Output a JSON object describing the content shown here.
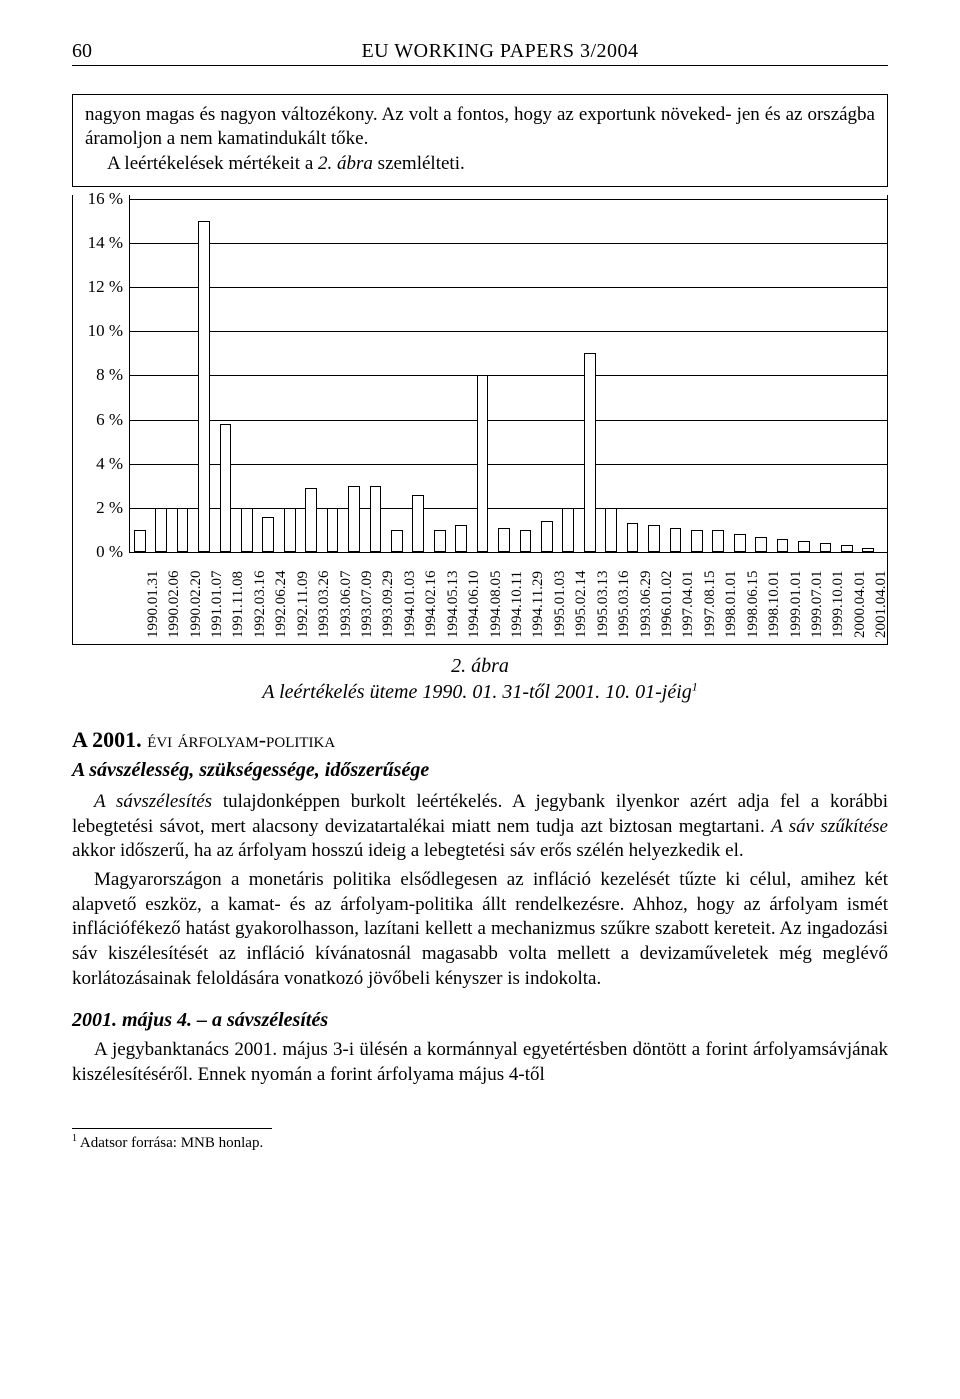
{
  "page_number": "60",
  "header_title": "EU WORKING PAPERS 3/2004",
  "intro": {
    "line1": "nagyon magas és nagyon változékony. Az volt a fontos, hogy az exportunk növeked-",
    "line2": "jen és az országba áramoljon a nem kamatindukált tőke.",
    "line3_prefix": "A leértékelések mértékeit a ",
    "line3_em": "2. ábra",
    "line3_suffix": " szemlélteti."
  },
  "chart": {
    "yticks": [
      0,
      2,
      4,
      6,
      8,
      10,
      12,
      14,
      16
    ],
    "ytick_labels": [
      "0 %",
      "2 %",
      "4 %",
      "6 %",
      "8 %",
      "10 %",
      "12 %",
      "14 %",
      "16 %"
    ],
    "ymax": 16,
    "bar_fill": "#ffffff",
    "bar_border": "#000000",
    "background": "#ffffff",
    "grid_color": "#000000",
    "bar_width_ratio": 0.55,
    "series": [
      {
        "date": "1990.01.31",
        "value": 1.0
      },
      {
        "date": "1990.02.06",
        "value": 2.0
      },
      {
        "date": "1990.02.20",
        "value": 2.0
      },
      {
        "date": "1991.01.07",
        "value": 15.0
      },
      {
        "date": "1991.11.08",
        "value": 5.8
      },
      {
        "date": "1992.03.16",
        "value": 2.0
      },
      {
        "date": "1992.06.24",
        "value": 1.6
      },
      {
        "date": "1992.11.09",
        "value": 2.0
      },
      {
        "date": "1993.03.26",
        "value": 2.9
      },
      {
        "date": "1993.06.07",
        "value": 2.0
      },
      {
        "date": "1993.07.09",
        "value": 3.0
      },
      {
        "date": "1993.09.29",
        "value": 3.0
      },
      {
        "date": "1994.01.03",
        "value": 1.0
      },
      {
        "date": "1994.02.16",
        "value": 2.6
      },
      {
        "date": "1994.05.13",
        "value": 1.0
      },
      {
        "date": "1994.06.10",
        "value": 1.2
      },
      {
        "date": "1994.08.05",
        "value": 8.0
      },
      {
        "date": "1994.10.11",
        "value": 1.1
      },
      {
        "date": "1994.11.29",
        "value": 1.0
      },
      {
        "date": "1995.01.03",
        "value": 1.4
      },
      {
        "date": "1995.02.14",
        "value": 2.0
      },
      {
        "date": "1995.03.13",
        "value": 9.0
      },
      {
        "date": "1995.03.16",
        "value": 2.0
      },
      {
        "date": "1993.06.29",
        "value": 1.3
      },
      {
        "date": "1996.01.02",
        "value": 1.2
      },
      {
        "date": "1997.04.01",
        "value": 1.1
      },
      {
        "date": "1997.08.15",
        "value": 1.0
      },
      {
        "date": "1998.01.01",
        "value": 1.0
      },
      {
        "date": "1998.06.15",
        "value": 0.8
      },
      {
        "date": "1998.10.01",
        "value": 0.7
      },
      {
        "date": "1999.01.01",
        "value": 0.6
      },
      {
        "date": "1999.07.01",
        "value": 0.5
      },
      {
        "date": "1999.10.01",
        "value": 0.4
      },
      {
        "date": "2000.04.01",
        "value": 0.3
      },
      {
        "date": "2001.04.01",
        "value": 0.2
      }
    ]
  },
  "caption": {
    "line1": "2. ábra",
    "line2_a": "A leértékelés üteme 1990. 01. 31-től 2001. 10. 01-jéig",
    "line2_sup": "1"
  },
  "section_title_prefix": "A 2001. ",
  "section_title_sc": "évi árfolyam-politika",
  "subsection_title": "A sávszélesség, szükségessége, időszerűsége",
  "body": {
    "p1_em": "A sávszélesítés",
    "p1_rest": " tulajdonképpen burkolt leértékelés. A jegybank ilyenkor azért adja fel a korábbi lebegtetési sávot, mert alacsony devizatartalékai miatt nem tudja azt biztosan megtartani. ",
    "p1_em2": "A sáv szűkítése",
    "p1_rest2": " akkor időszerű, ha az árfolyam hosszú ideig a lebegtetési sáv erős szélén helyezkedik el.",
    "p2": "Magyarországon a monetáris politika elsődlegesen az infláció kezelését tűzte ki célul, amihez két alapvető eszköz, a kamat- és az árfolyam-politika állt rendelkezésre. Ahhoz, hogy az árfolyam ismét inflációfékező hatást gyakorolhasson, lazítani kellett a mechanizmus szűkre szabott kereteit. Az ingadozási sáv kiszélesítését az infláció kívánatosnál magasabb volta mellett a devizaműveletek még meglévő korlátozásainak feloldására vonatkozó jövőbeli kényszer is indokolta."
  },
  "date_heading": "2001. május 4. – a sávszélesítés",
  "p3": "A jegybanktanács 2001. május 3-i ülésén a kormánnyal egyetértésben döntött a forint árfolyamsávjának kiszélesítéséről. Ennek nyomán a forint árfolyama május 4-től",
  "footnote_num": "1",
  "footnote_text": " Adatsor forrása: MNB honlap."
}
